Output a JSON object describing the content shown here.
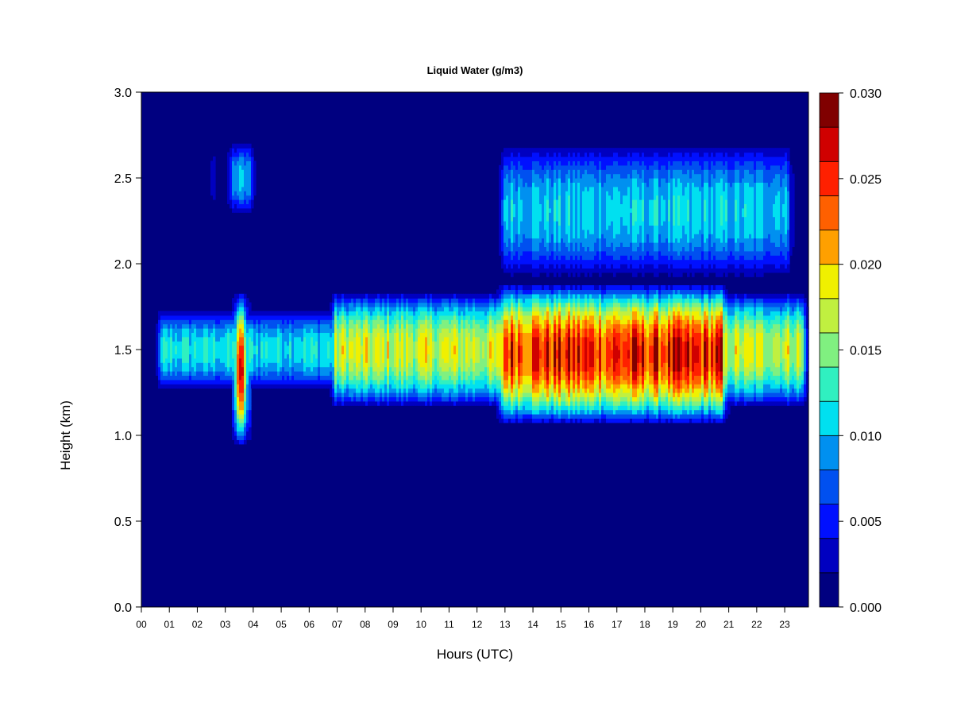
{
  "chart_data": {
    "type": "heatmap",
    "title": "Liquid Water (g/m3)",
    "xlabel": "Hours (UTC)",
    "ylabel": "Height (km)",
    "xlim": [
      0,
      23.85
    ],
    "ylim": [
      0.0,
      3.0
    ],
    "x_tick_labels": [
      "00",
      "01",
      "02",
      "03",
      "04",
      "05",
      "06",
      "07",
      "08",
      "09",
      "10",
      "11",
      "12",
      "13",
      "14",
      "15",
      "16",
      "17",
      "18",
      "19",
      "20",
      "21",
      "22",
      "23"
    ],
    "y_tick_values": [
      0.0,
      0.5,
      1.0,
      1.5,
      2.0,
      2.5,
      3.0
    ],
    "y_tick_labels": [
      "0.0",
      "0.5",
      "1.0",
      "1.5",
      "2.0",
      "2.5",
      "3.0"
    ],
    "colorbar": {
      "range": [
        0.0,
        0.03
      ],
      "levels": 15,
      "tick_values": [
        0.0,
        0.005,
        0.01,
        0.015,
        0.02,
        0.025,
        0.03
      ],
      "tick_labels": [
        "0.000",
        "0.005",
        "0.010",
        "0.015",
        "0.020",
        "0.025",
        "0.030"
      ],
      "colors": [
        "#000080",
        "#0000C0",
        "#0010FF",
        "#0050F0",
        "#0090F0",
        "#00E0F0",
        "#30F0C0",
        "#80F080",
        "#C0F040",
        "#F0F000",
        "#FFA000",
        "#FF6000",
        "#FF2000",
        "#D00000",
        "#800000"
      ]
    },
    "background_value": 0.0,
    "layers": [
      {
        "name": "low-cloud-layer",
        "x_start": 0.5,
        "x_end": 23.85,
        "base": 1.25,
        "top": 1.75,
        "peak_value": 0.012
      },
      {
        "name": "low-cloud-layer-thick",
        "x_start": 6.7,
        "x_end": 23.85,
        "base": 1.15,
        "top": 1.85,
        "peak_value": 0.018
      },
      {
        "name": "low-cloud-core",
        "x_start": 12.7,
        "x_end": 21.0,
        "base": 1.05,
        "top": 1.9,
        "peak_value": 0.026
      },
      {
        "name": "early-core",
        "x_start": 3.2,
        "x_end": 3.9,
        "base": 0.92,
        "top": 1.85,
        "peak_value": 0.024
      },
      {
        "name": "early-upper-patch",
        "x_start": 3.05,
        "x_end": 4.1,
        "base": 2.28,
        "top": 2.72,
        "peak_value": 0.01
      },
      {
        "name": "early-upper-sliver",
        "x_start": 2.5,
        "x_end": 2.6,
        "base": 2.28,
        "top": 2.72,
        "peak_value": 0.009
      },
      {
        "name": "upper-cloud-layer",
        "x_start": 12.75,
        "x_end": 23.3,
        "base": 1.9,
        "top": 2.72,
        "peak_value": 0.011
      }
    ]
  }
}
